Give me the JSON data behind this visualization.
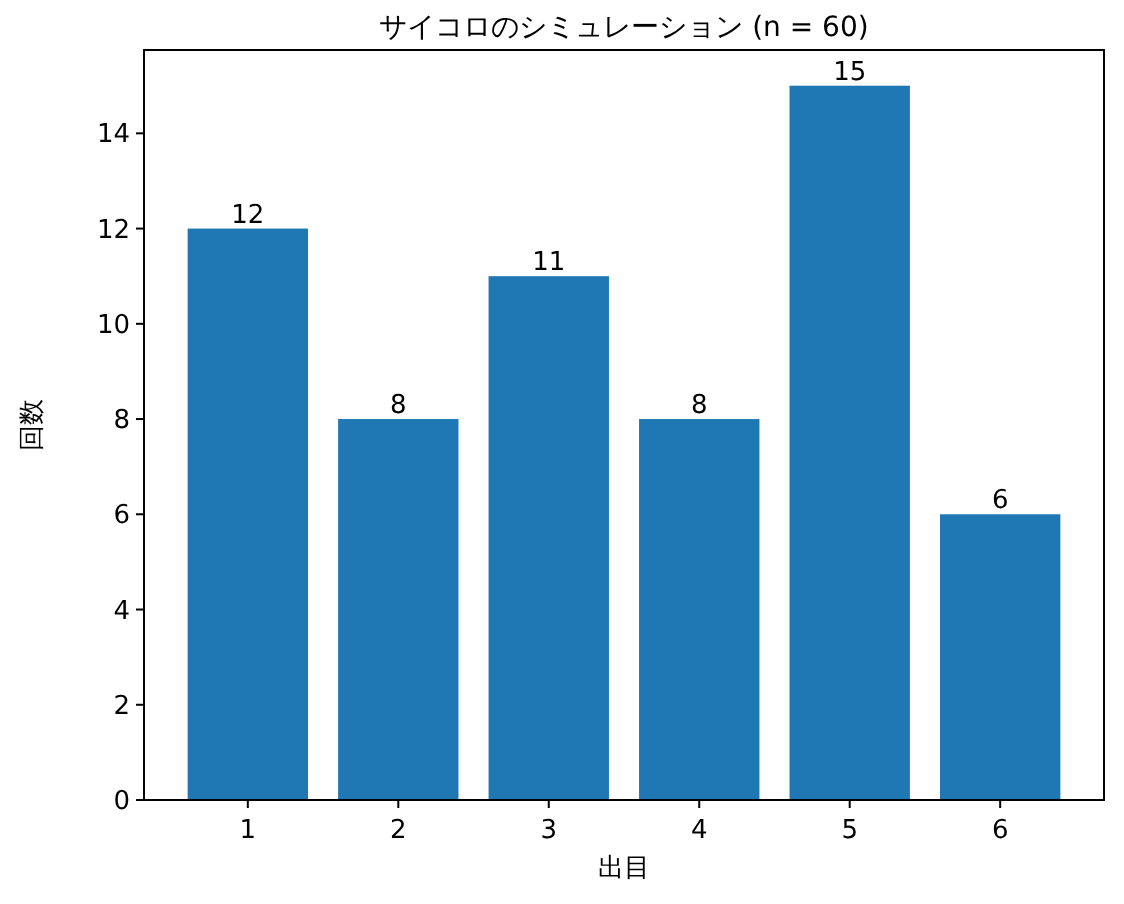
{
  "chart_data": {
    "type": "bar",
    "title": "サイコロのシミュレーション (n = 60)",
    "xlabel": "出目",
    "ylabel": "回数",
    "categories": [
      "1",
      "2",
      "3",
      "4",
      "5",
      "6"
    ],
    "values": [
      12,
      8,
      11,
      8,
      15,
      6
    ],
    "color": "#1f77b4",
    "ylim": [
      0,
      15.75
    ],
    "yticks": [
      0,
      2,
      4,
      6,
      8,
      10,
      12,
      14
    ],
    "data_labels": true
  }
}
